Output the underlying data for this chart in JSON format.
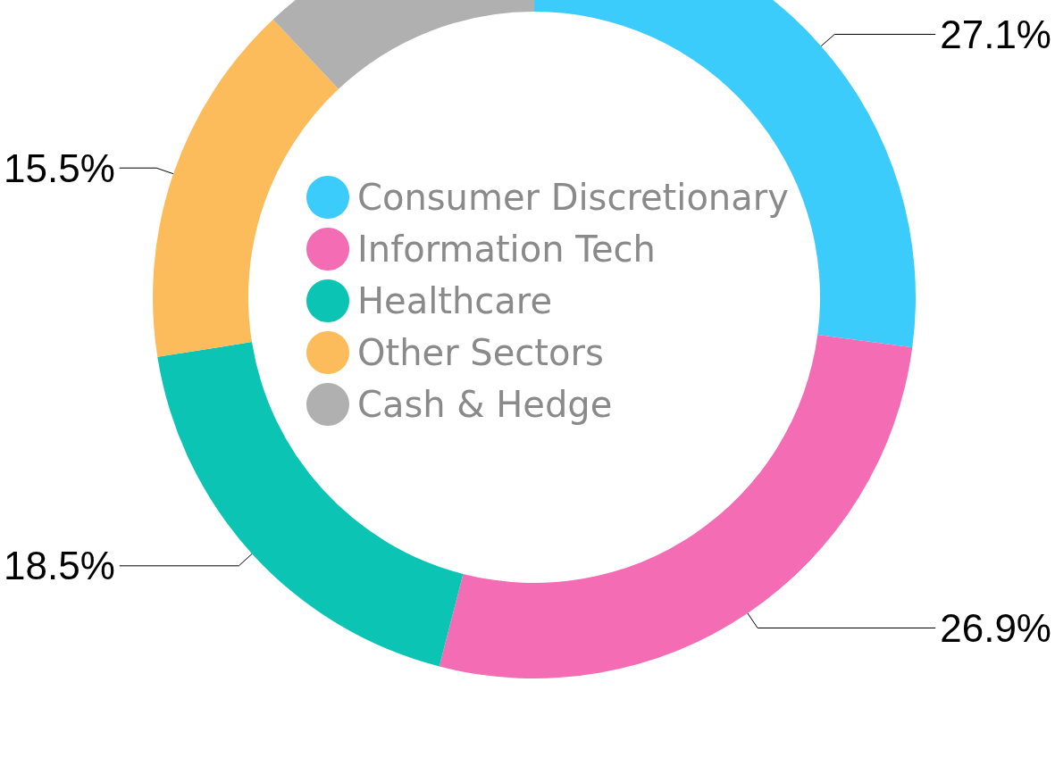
{
  "chart_data": {
    "type": "donut",
    "categories": [
      "Consumer Discretionary",
      "Information Tech",
      "Healthcare",
      "Other Sectors",
      "Cash & Hedge"
    ],
    "values": [
      27.1,
      26.9,
      18.5,
      15.5,
      12.0
    ],
    "colors": [
      "#3cccfc",
      "#f36cb4",
      "#0cc4b4",
      "#fcbc5c",
      "#b0b0b0"
    ],
    "value_labels": [
      "27.1%",
      "26.9%",
      "18.5%",
      "15.5%",
      null
    ],
    "legend": "center"
  }
}
